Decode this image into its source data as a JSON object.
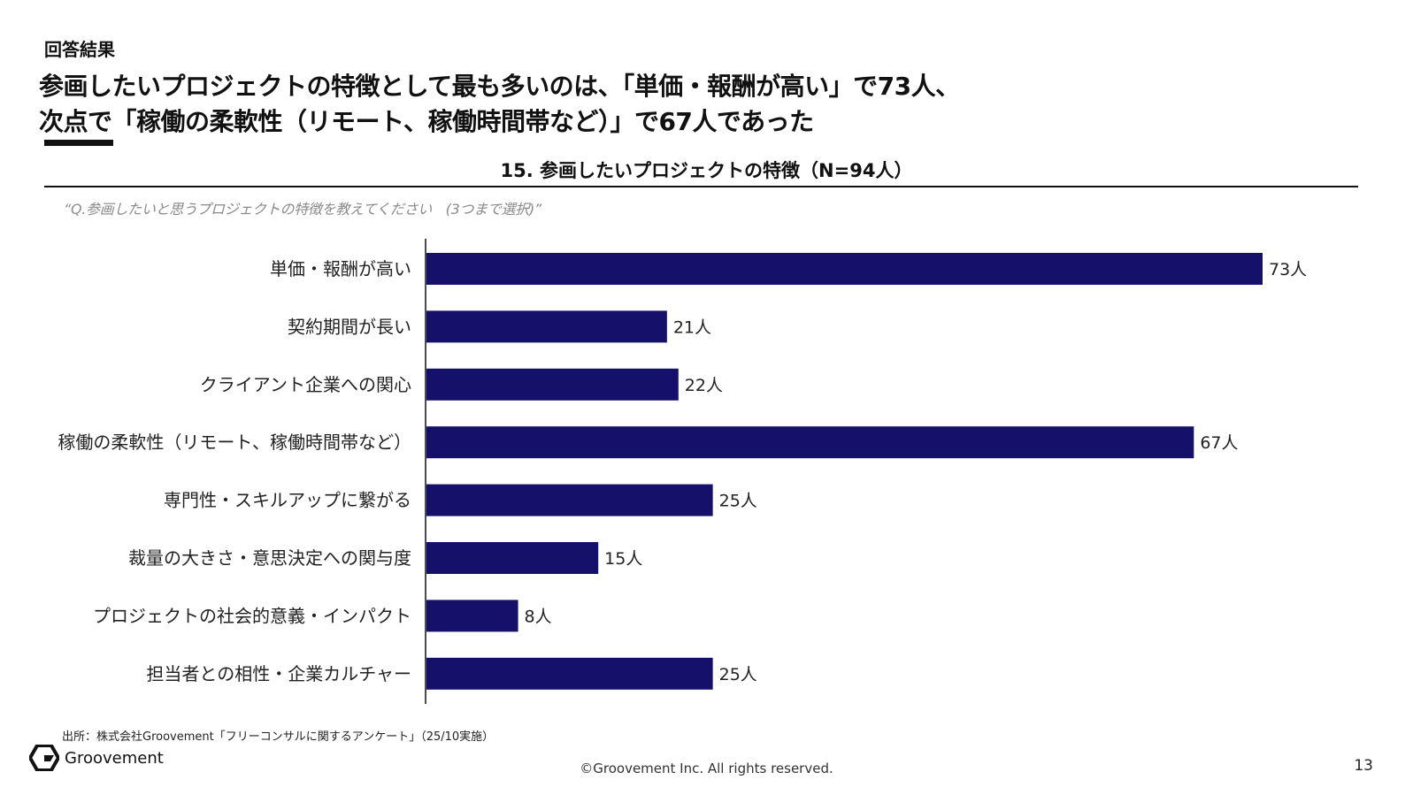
{
  "header": {
    "section_label": "回答結果",
    "headline_line1": "参画したいプロジェクトの特徴として最も多いのは、「単価・報酬が高い」で73人、",
    "headline_line2": "次点で「稼働の柔軟性（リモート、稼働時間帯など）」で67人であった"
  },
  "chart_data": {
    "type": "bar",
    "orientation": "horizontal",
    "title": "15. 参画したいプロジェクトの特徴（N=94人）",
    "question": "“Q.参画したいと思うプロジェクトの特徴を教えてください　(3つまで選択)”",
    "categories": [
      "単価・報酬が高い",
      "契約期間が長い",
      "クライアント企業への関心",
      "稼働の柔軟性（リモート、稼働時間帯など）",
      "専門性・スキルアップに繋がる",
      "裁量の大きさ・意思決定への関与度",
      "プロジェクトの社会的意義・インパクト",
      "担当者との相性・企業カルチャー"
    ],
    "values": [
      73,
      21,
      22,
      67,
      25,
      15,
      8,
      25
    ],
    "value_labels": [
      "73人",
      "21人",
      "22人",
      "67人",
      "25人",
      "15人",
      "8人",
      "25人"
    ],
    "xlim": [
      0,
      73
    ],
    "bar_color": "#15116b"
  },
  "footer": {
    "source": "出所：株式会社Groovement「フリーコンサルに関するアンケート」（25/10実施）",
    "logo_text": "Groovement",
    "copyright": "©Groovement Inc. All rights reserved.",
    "page_number": "13"
  }
}
